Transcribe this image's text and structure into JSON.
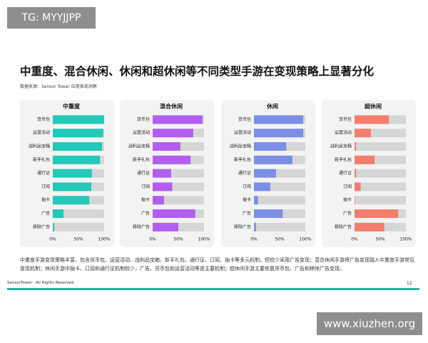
{
  "badge": "TG: MYYJJPP",
  "header": {
    "title": "中重度、混合休闲、休闲和超休闲等不同类型手游在变现策略上显著分化",
    "source": "数据来源：Sensor Tower 应用表现洞察"
  },
  "chart_data": [
    {
      "type": "bar",
      "title": "中重度",
      "color": "#22c9b7",
      "categories": [
        "货币包",
        "运营活动",
        "战利品宝箱",
        "新手礼包",
        "通行证",
        "订阅",
        "抽卡",
        "广告",
        "移除广告"
      ],
      "values": [
        100,
        98,
        96,
        92,
        76,
        75,
        71,
        21,
        3
      ],
      "xlim": [
        0,
        100
      ],
      "xticks": [
        {
          "value": 0,
          "label": "0%"
        },
        {
          "value": 50,
          "label": "50%"
        },
        {
          "value": 100,
          "label": "100%"
        }
      ]
    },
    {
      "type": "bar",
      "title": "混合休闲",
      "color": "#b25ef0",
      "categories": [
        "货币包",
        "运营活动",
        "战利品宝箱",
        "新手礼包",
        "通行证",
        "订阅",
        "抽卡",
        "广告",
        "移除广告"
      ],
      "values": [
        97,
        79,
        54,
        74,
        36,
        38,
        22,
        83,
        50
      ],
      "xlim": [
        0,
        100
      ],
      "xticks": [
        {
          "value": 0,
          "label": "0%"
        },
        {
          "value": 50,
          "label": "50%"
        },
        {
          "value": 100,
          "label": "100%"
        }
      ]
    },
    {
      "type": "bar",
      "title": "休闲",
      "color": "#7b8fe6",
      "categories": [
        "货币包",
        "运营活动",
        "战利品宝箱",
        "新手礼包",
        "通行证",
        "订阅",
        "抽卡",
        "广告",
        "移除广告"
      ],
      "values": [
        96,
        96,
        63,
        75,
        43,
        32,
        8,
        56,
        4
      ],
      "xlim": [
        0,
        100
      ],
      "xticks": [
        {
          "value": 0,
          "label": "0%"
        },
        {
          "value": 50,
          "label": "50%"
        },
        {
          "value": 100,
          "label": "100%"
        }
      ]
    },
    {
      "type": "bar",
      "title": "超休闲",
      "color": "#f47d6d",
      "categories": [
        "货币包",
        "运营活动",
        "战利品宝箱",
        "新手礼包",
        "通行证",
        "订阅",
        "抽卡",
        "广告",
        "移除广告"
      ],
      "values": [
        67,
        32,
        3,
        39,
        3,
        12,
        1,
        85,
        58
      ],
      "xlim": [
        0,
        100
      ],
      "xticks": [
        {
          "value": 0,
          "label": "0%"
        },
        {
          "value": 50,
          "label": "50%"
        },
        {
          "value": 100,
          "label": "100%"
        }
      ]
    }
  ],
  "note": "中重度手游变现策略丰富，包含货币包、运营活动、战利品宝箱、新手礼包、通行证、订阅、抽卡等多元机制，但较少采用广告变现；混合休闲手游将广告变现融入中重度手游常见变现机制；休闲手游中抽卡、订阅和通行证机制较少，广告、货币包和运营活动等是主要机制；超休闲手游主要依靠货币包、广告和移除广告变现。",
  "footer": {
    "brand": "SensorTower · All Rights Reserved",
    "page": "12"
  },
  "watermark": "www.xiuzhen.org"
}
